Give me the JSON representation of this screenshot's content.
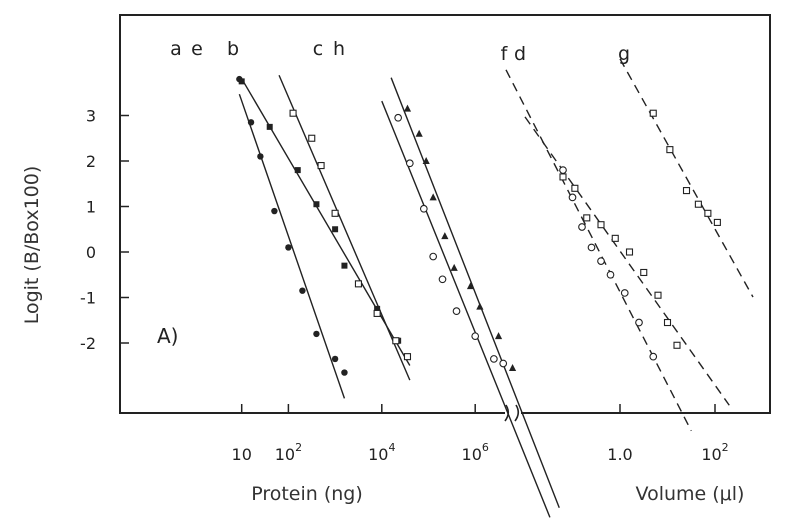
{
  "chart_data": {
    "type": "scatter",
    "panel_label": "A)",
    "ylabel": "Logit (B/Box100)",
    "ylim": [
      -3.5,
      4.3
    ],
    "y_ticks": [
      "3",
      "2",
      "1",
      "0",
      "-1",
      "-2"
    ],
    "y_tick_values": [
      3,
      2,
      1,
      0,
      -1,
      -2
    ],
    "grid": false,
    "x_axes": [
      {
        "label": "Protein (ng)",
        "scale": "log",
        "ticks": [
          {
            "base": "10",
            "exp": "",
            "value": 1
          },
          {
            "base": "10",
            "exp": "2",
            "value": 2
          },
          {
            "base": "10",
            "exp": "4",
            "value": 4
          },
          {
            "base": "10",
            "exp": "6",
            "value": 6
          }
        ]
      },
      {
        "label": "Volume (μl)",
        "scale": "log",
        "ticks": [
          {
            "base": "1.0",
            "exp": "",
            "value": 0
          },
          {
            "base": "10",
            "exp": "2",
            "value": 2
          }
        ]
      }
    ],
    "series": [
      {
        "name": "a",
        "axis": 0,
        "line": "solid",
        "marker": "filled-circle",
        "line_x": [
          0.95,
          3.2
        ],
        "points": [
          [
            0.95,
            3.8
          ],
          [
            1.2,
            2.85
          ],
          [
            1.4,
            2.1
          ],
          [
            1.7,
            0.9
          ],
          [
            2.0,
            0.1
          ],
          [
            2.3,
            -0.85
          ],
          [
            2.6,
            -1.8
          ],
          [
            3.0,
            -2.35
          ],
          [
            3.2,
            -2.65
          ]
        ]
      },
      {
        "name": "e",
        "axis": 0,
        "line": "solid",
        "marker": "filled-square",
        "line_x": [
          1.0,
          4.6
        ],
        "points": [
          [
            1.0,
            3.75
          ],
          [
            1.6,
            2.75
          ],
          [
            2.2,
            1.8
          ],
          [
            2.6,
            1.05
          ],
          [
            3.0,
            0.5
          ],
          [
            3.2,
            -0.3
          ],
          [
            3.5,
            -0.7
          ],
          [
            3.9,
            -1.25
          ],
          [
            4.35,
            -1.95
          ]
        ]
      },
      {
        "name": "b",
        "axis": 0,
        "line": "solid",
        "marker": "open-square",
        "line_x": [
          1.8,
          4.6
        ],
        "points": [
          [
            2.1,
            3.05
          ],
          [
            2.5,
            2.5
          ],
          [
            2.7,
            1.9
          ],
          [
            3.0,
            0.85
          ],
          [
            3.5,
            -0.7
          ],
          [
            3.9,
            -1.35
          ],
          [
            4.3,
            -1.95
          ],
          [
            4.55,
            -2.3
          ]
        ]
      },
      {
        "name": "c",
        "axis": 0,
        "line": "solid",
        "marker": "open-circle",
        "line_x": [
          4.0,
          7.6
        ],
        "points": [
          [
            4.35,
            2.95
          ],
          [
            4.6,
            1.95
          ],
          [
            4.9,
            0.95
          ],
          [
            5.1,
            -0.1
          ],
          [
            5.3,
            -0.6
          ],
          [
            5.6,
            -1.3
          ],
          [
            6.0,
            -1.85
          ],
          [
            6.4,
            -2.35
          ],
          [
            6.6,
            -2.45
          ]
        ]
      },
      {
        "name": "h",
        "axis": 0,
        "line": "solid",
        "marker": "filled-triangle",
        "line_x": [
          4.2,
          7.8
        ],
        "points": [
          [
            4.55,
            3.15
          ],
          [
            4.8,
            2.6
          ],
          [
            4.95,
            2.0
          ],
          [
            5.1,
            1.2
          ],
          [
            5.35,
            0.35
          ],
          [
            5.55,
            -0.35
          ],
          [
            5.9,
            -0.75
          ],
          [
            6.1,
            -1.2
          ],
          [
            6.5,
            -1.85
          ],
          [
            6.8,
            -2.55
          ]
        ]
      },
      {
        "name": "f",
        "axis": 1,
        "line": "dashed",
        "marker": "open-circle",
        "line_x": [
          -2.4,
          1.5
        ],
        "points": [
          [
            -1.2,
            1.8
          ],
          [
            -1.0,
            1.2
          ],
          [
            -0.8,
            0.55
          ],
          [
            -0.6,
            0.1
          ],
          [
            -0.4,
            -0.2
          ],
          [
            -0.2,
            -0.5
          ],
          [
            0.1,
            -0.9
          ],
          [
            0.4,
            -1.55
          ],
          [
            0.7,
            -2.3
          ]
        ]
      },
      {
        "name": "d",
        "axis": 1,
        "line": "dashed",
        "marker": "open-square",
        "line_x": [
          -2.0,
          2.3
        ],
        "points": [
          [
            -1.2,
            1.65
          ],
          [
            -0.95,
            1.4
          ],
          [
            -0.7,
            0.75
          ],
          [
            -0.4,
            0.6
          ],
          [
            -0.1,
            0.3
          ],
          [
            0.2,
            0.0
          ],
          [
            0.5,
            -0.45
          ],
          [
            0.8,
            -0.95
          ],
          [
            1.0,
            -1.55
          ],
          [
            1.2,
            -2.05
          ]
        ]
      },
      {
        "name": "g",
        "axis": 1,
        "line": "dashed",
        "marker": "open-square",
        "line_x": [
          0.0,
          2.8
        ],
        "points": [
          [
            0.7,
            3.05
          ],
          [
            1.05,
            2.25
          ],
          [
            1.4,
            1.35
          ],
          [
            1.65,
            1.05
          ],
          [
            1.85,
            0.85
          ],
          [
            2.05,
            0.65
          ]
        ]
      }
    ]
  }
}
